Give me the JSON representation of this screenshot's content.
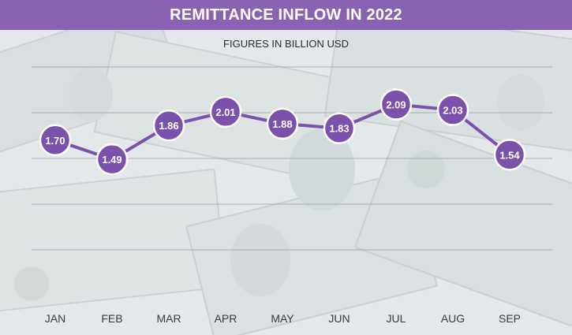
{
  "colors": {
    "accent": "#7b52ab",
    "title_bar": "#8a62b4",
    "grid": "#9aa0a6",
    "label_text": "#ffffff",
    "axis_text": "#3a3a3a"
  },
  "chart_data": {
    "type": "line",
    "title": "REMITTANCE INFLOW IN 2022",
    "subtitle": "FIGURES IN BILLION USD",
    "categories": [
      "JAN",
      "FEB",
      "MAR",
      "APR",
      "MAY",
      "JUN",
      "JUL",
      "AUG",
      "SEP"
    ],
    "values": [
      1.7,
      1.49,
      1.86,
      2.01,
      1.88,
      1.83,
      2.09,
      2.03,
      1.54
    ],
    "value_labels": [
      "1.70",
      "1.49",
      "1.86",
      "2.01",
      "1.88",
      "1.83",
      "2.09",
      "2.03",
      "1.54"
    ],
    "ylim": [
      0,
      2.5
    ],
    "grid": true,
    "legend": "none"
  }
}
